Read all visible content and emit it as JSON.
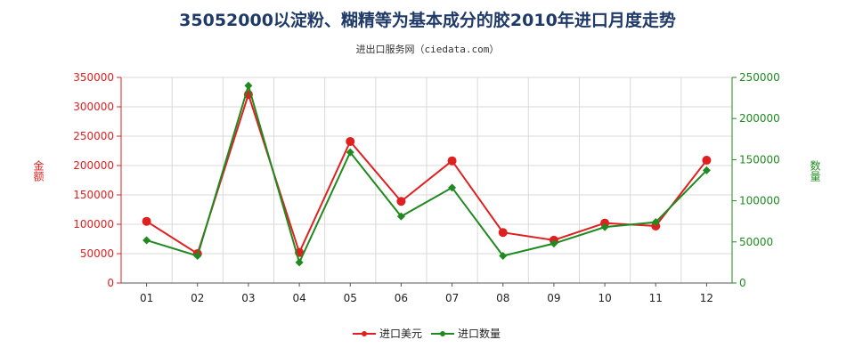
{
  "chart_data": {
    "type": "line",
    "title": "35052000以淀粉、糊精等为基本成分的胶2010年进口月度走势",
    "subtitle": "进出口服务网（ciedata.com）",
    "categories": [
      "01",
      "02",
      "03",
      "04",
      "05",
      "06",
      "07",
      "08",
      "09",
      "10",
      "11",
      "12"
    ],
    "ylabel_left": "金额",
    "ylabel_right": "数量",
    "ylim_left": [
      0,
      350000
    ],
    "yticks_left": [
      "0",
      "50000",
      "100000",
      "150000",
      "200000",
      "250000",
      "300000",
      "350000"
    ],
    "ylim_right": [
      0,
      250000
    ],
    "yticks_right": [
      "0",
      "50000",
      "100000",
      "150000",
      "200000",
      "250000"
    ],
    "grid": true,
    "legend_position": "bottom-center",
    "series": [
      {
        "name": "进口美元",
        "axis": "left",
        "color": "#e02020",
        "values": [
          105000,
          50000,
          321000,
          52000,
          241000,
          139000,
          208000,
          86000,
          73000,
          102000,
          97000,
          209000
        ]
      },
      {
        "name": "进口数量",
        "axis": "right",
        "color": "#1f8a1f",
        "values": [
          52000,
          33000,
          240000,
          25000,
          159000,
          81000,
          116000,
          33000,
          48000,
          68000,
          74000,
          137000
        ]
      }
    ]
  }
}
